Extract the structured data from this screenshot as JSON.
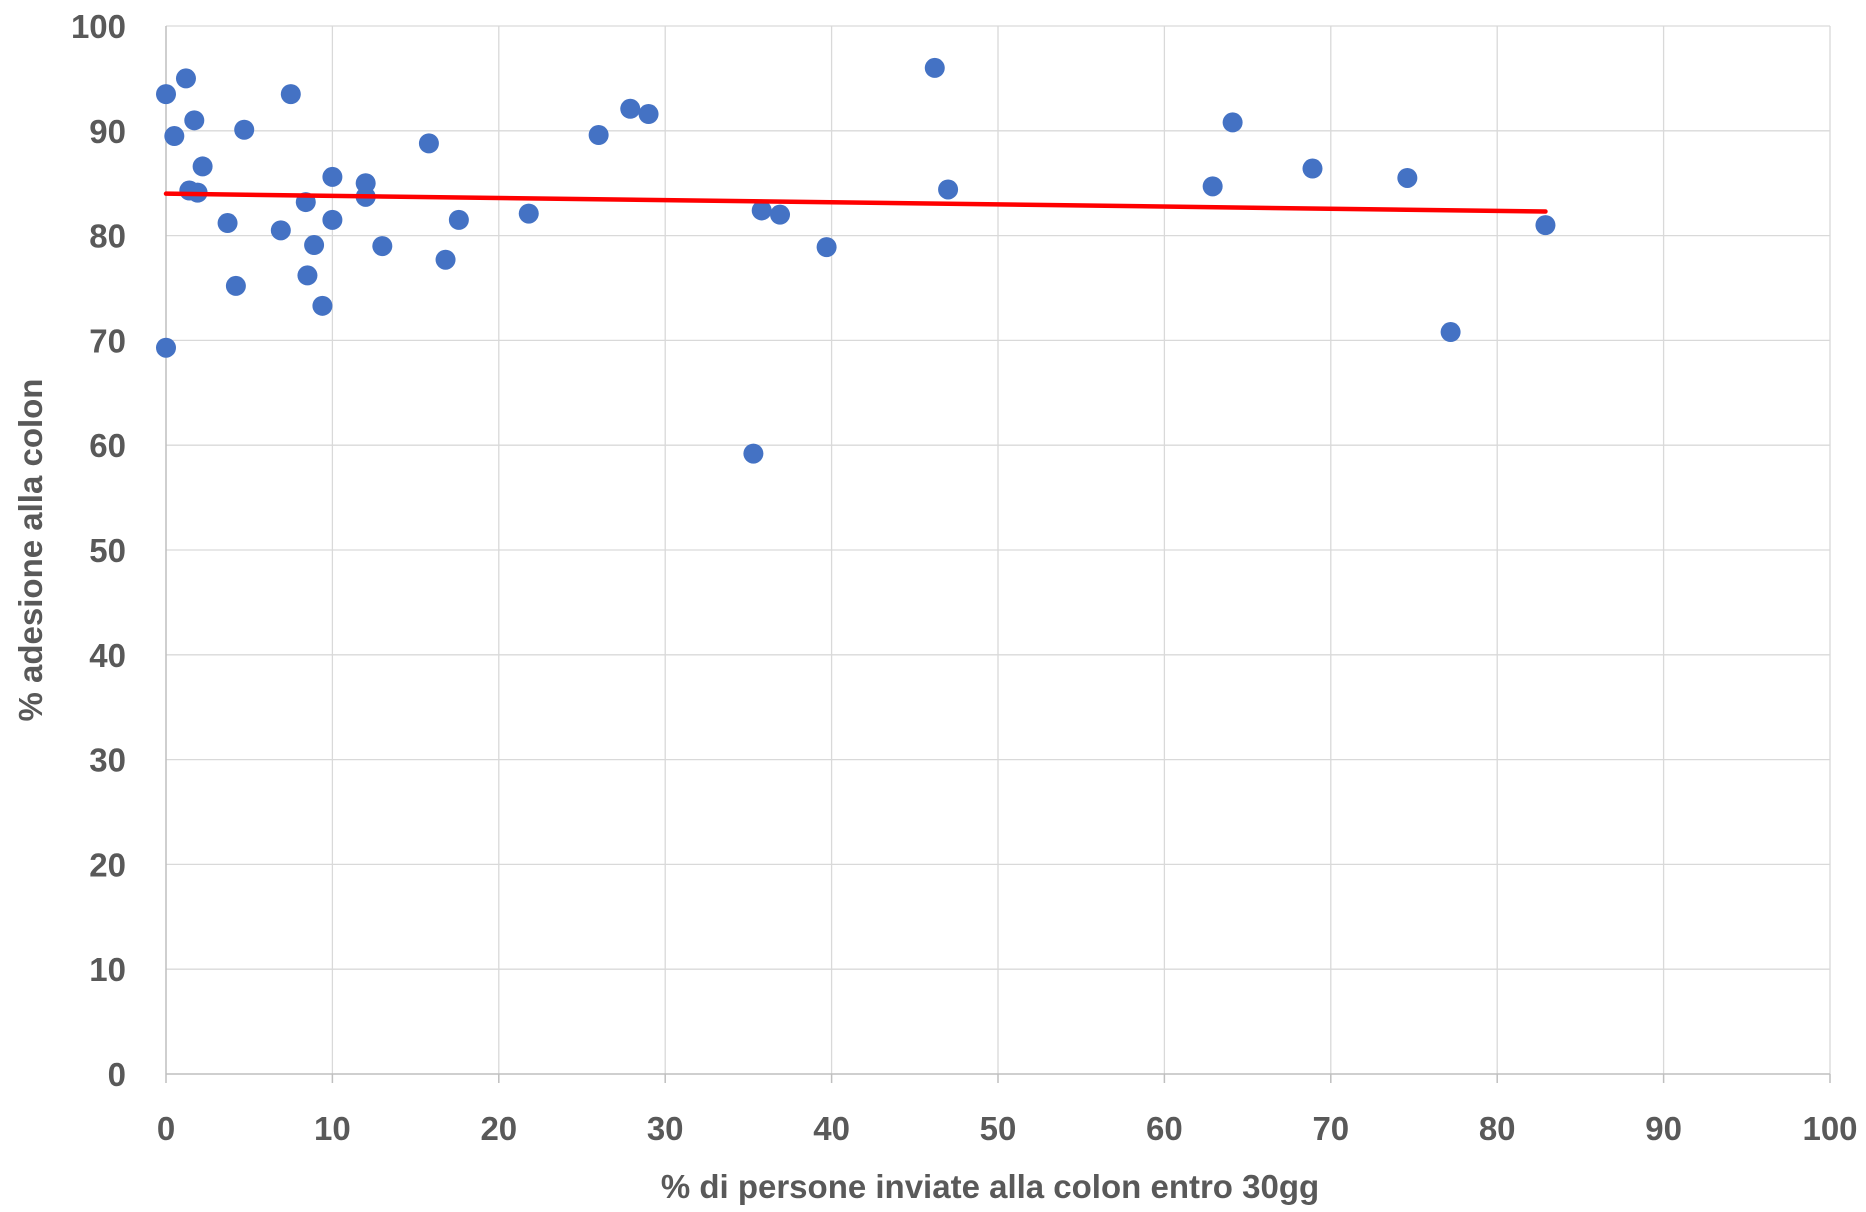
{
  "chart_data": {
    "type": "scatter",
    "title": "",
    "xlabel": "% di persone inviate alla colon entro 30gg",
    "ylabel": "% adesione alla colon",
    "xlim": [
      0,
      100
    ],
    "ylim": [
      0,
      100
    ],
    "x_ticks": [
      "0",
      "10",
      "20",
      "30",
      "40",
      "50",
      "60",
      "70",
      "80",
      "90",
      "100"
    ],
    "y_ticks": [
      "0",
      "10",
      "20",
      "30",
      "40",
      "50",
      "60",
      "70",
      "80",
      "90",
      "100"
    ],
    "grid": true,
    "legend": "none",
    "point_color": "#4472C4",
    "trendline_color": "#FF0000",
    "trendline": {
      "x": [
        0,
        82.9
      ],
      "y": [
        84.0,
        82.3
      ]
    },
    "points": [
      {
        "x": 0.0,
        "y": 93.5
      },
      {
        "x": 0.5,
        "y": 89.5
      },
      {
        "x": 1.2,
        "y": 95.0
      },
      {
        "x": 1.7,
        "y": 91.0
      },
      {
        "x": 1.4,
        "y": 84.3
      },
      {
        "x": 1.9,
        "y": 84.1
      },
      {
        "x": 2.2,
        "y": 86.6
      },
      {
        "x": 3.7,
        "y": 81.2
      },
      {
        "x": 4.7,
        "y": 90.1
      },
      {
        "x": 4.2,
        "y": 75.2
      },
      {
        "x": 0.0,
        "y": 69.3
      },
      {
        "x": 6.9,
        "y": 80.5
      },
      {
        "x": 7.5,
        "y": 93.5
      },
      {
        "x": 8.4,
        "y": 83.2
      },
      {
        "x": 8.5,
        "y": 76.2
      },
      {
        "x": 8.9,
        "y": 79.1
      },
      {
        "x": 9.4,
        "y": 73.3
      },
      {
        "x": 10.0,
        "y": 85.6
      },
      {
        "x": 10.0,
        "y": 81.5
      },
      {
        "x": 12.0,
        "y": 85.0
      },
      {
        "x": 12.0,
        "y": 83.7
      },
      {
        "x": 13.0,
        "y": 79.0
      },
      {
        "x": 15.8,
        "y": 88.8
      },
      {
        "x": 16.8,
        "y": 77.7
      },
      {
        "x": 17.6,
        "y": 81.5
      },
      {
        "x": 21.8,
        "y": 82.1
      },
      {
        "x": 26.0,
        "y": 89.6
      },
      {
        "x": 27.9,
        "y": 92.1
      },
      {
        "x": 29.0,
        "y": 91.6
      },
      {
        "x": 35.3,
        "y": 59.2
      },
      {
        "x": 35.8,
        "y": 82.4
      },
      {
        "x": 36.9,
        "y": 82.0
      },
      {
        "x": 39.7,
        "y": 78.9
      },
      {
        "x": 46.2,
        "y": 96.0
      },
      {
        "x": 47.0,
        "y": 84.4
      },
      {
        "x": 62.9,
        "y": 84.7
      },
      {
        "x": 64.1,
        "y": 90.8
      },
      {
        "x": 68.9,
        "y": 86.4
      },
      {
        "x": 74.6,
        "y": 85.5
      },
      {
        "x": 77.2,
        "y": 70.8
      },
      {
        "x": 82.9,
        "y": 81.0
      }
    ]
  }
}
